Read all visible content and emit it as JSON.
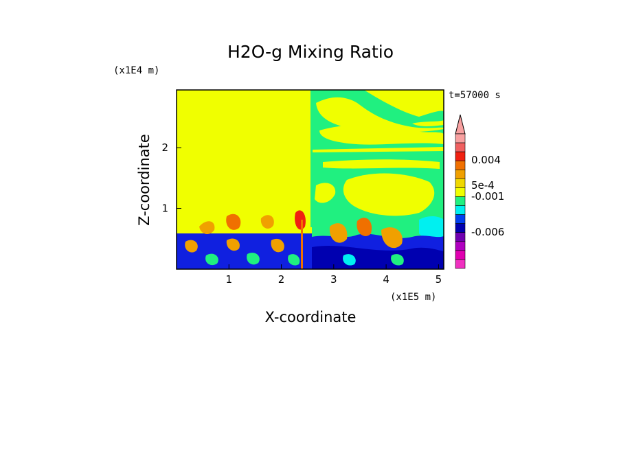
{
  "chart_data": {
    "type": "heatmap",
    "title": "H2O-g Mixing Ratio",
    "xlabel": "X-coordinate",
    "ylabel": "Z-coordinate",
    "x_multiplier": "(x1E5 m)",
    "y_multiplier": "(x1E4 m)",
    "time_label": "t=57000 s",
    "xlim": [
      0,
      5.1
    ],
    "ylim": [
      0,
      2.95
    ],
    "x_ticks": [
      1,
      2,
      3,
      4,
      5
    ],
    "y_ticks": [
      1,
      2
    ],
    "colorbar": {
      "labels": [
        "0.004",
        "5e-4",
        "-0.001",
        "-0.006"
      ],
      "colors": [
        "#f8a0a0",
        "#f06060",
        "#f02010",
        "#f07000",
        "#f0a000",
        "#f0d800",
        "#f0ff00",
        "#20f080",
        "#00f0f0",
        "#0040f0",
        "#0000b0",
        "#7000b0",
        "#b000c0",
        "#e000b0",
        "#f030c0"
      ]
    },
    "regions": {
      "background": "#f0ff00",
      "upper_right": "#20f080",
      "boundary_layer": "#1020e0",
      "warm_eddies": "#f0a000"
    }
  }
}
